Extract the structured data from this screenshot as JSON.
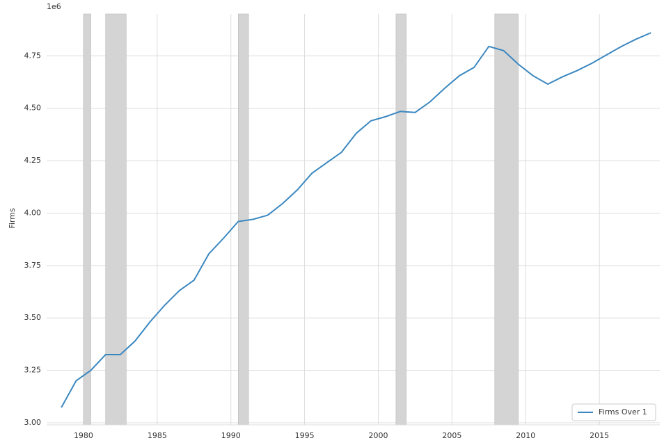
{
  "chart_data": {
    "type": "line",
    "y_label": "Firms",
    "offset_label": "1e6",
    "x": [
      1978.5,
      1979.5,
      1980.5,
      1981.5,
      1982.5,
      1983.5,
      1984.5,
      1985.5,
      1986.5,
      1987.5,
      1988.5,
      1989.5,
      1990.5,
      1991.5,
      1992.5,
      1993.5,
      1994.5,
      1995.5,
      1996.5,
      1997.5,
      1998.5,
      1999.5,
      2000.5,
      2001.5,
      2002.5,
      2003.5,
      2004.5,
      2005.5,
      2006.5,
      2007.5,
      2008.5,
      2009.5,
      2010.5,
      2011.5,
      2012.5,
      2013.5,
      2014.5,
      2015.5,
      2016.5,
      2017.5,
      2018.5
    ],
    "series": [
      {
        "name": "Firms Over 1",
        "color": "#3a87c0",
        "values": [
          3.073,
          3.2,
          3.25,
          3.325,
          3.325,
          3.39,
          3.48,
          3.56,
          3.63,
          3.68,
          3.805,
          3.88,
          3.96,
          3.97,
          3.99,
          4.045,
          4.11,
          4.19,
          4.24,
          4.29,
          4.38,
          4.44,
          4.46,
          4.485,
          4.48,
          4.53,
          4.595,
          4.655,
          4.695,
          4.795,
          4.775,
          4.71,
          4.655,
          4.615,
          4.65,
          4.68,
          4.715,
          4.755,
          4.795,
          4.83,
          4.86
        ]
      }
    ],
    "shaded_spans": [
      [
        1980.0,
        1980.5
      ],
      [
        1981.5,
        1982.9
      ],
      [
        1990.5,
        1991.2
      ],
      [
        2001.2,
        2001.9
      ],
      [
        2007.9,
        2009.5
      ]
    ],
    "shade_color": "#d4d4d4",
    "xlim": [
      1977.5,
      2019.1
    ],
    "ylim": [
      2.99,
      4.95
    ],
    "xticks": [
      1980,
      1985,
      1990,
      1995,
      2000,
      2005,
      2010,
      2015
    ],
    "yticks": [
      {
        "value": 3.0,
        "label": "3.00"
      },
      3.25,
      {
        "value": 3.5,
        "label": "3.50"
      },
      3.75,
      {
        "value": 4.0,
        "label": "4.00"
      },
      4.25,
      {
        "value": 4.5,
        "label": "4.50"
      },
      4.75
    ],
    "grid": true,
    "legend": "lower right"
  }
}
